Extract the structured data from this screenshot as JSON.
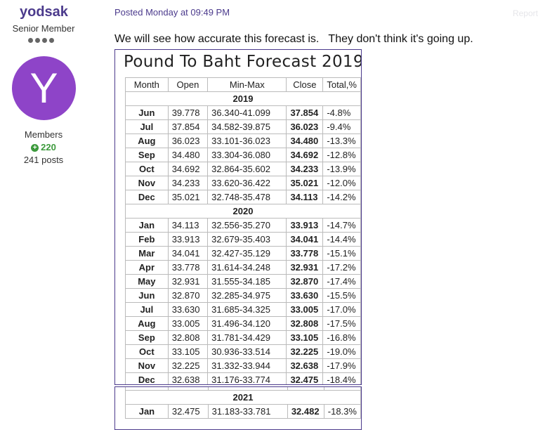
{
  "author": {
    "username": "yodsak",
    "rank": "Senior Member",
    "avatar_letter": "Y",
    "avatar_color": "#8e44c8",
    "group": "Members",
    "reputation": "220",
    "posts": "241 posts"
  },
  "post": {
    "posted": "Posted Monday at 09:49 PM",
    "report": "Report",
    "text": "We will see how accurate this forecast is.   They don't think it's going up."
  },
  "forecast": {
    "title": "Pound To Baht Forecast 2019,",
    "headers": [
      "Month",
      "Open",
      "Min-Max",
      "Close",
      "Total,%"
    ],
    "year2019": "2019",
    "rows2019": [
      [
        "Jun",
        "39.778",
        "36.340-41.099",
        "37.854",
        "-4.8%"
      ],
      [
        "Jul",
        "37.854",
        "34.582-39.875",
        "36.023",
        "-9.4%"
      ],
      [
        "Aug",
        "36.023",
        "33.101-36.023",
        "34.480",
        "-13.3%"
      ],
      [
        "Sep",
        "34.480",
        "33.304-36.080",
        "34.692",
        "-12.8%"
      ],
      [
        "Oct",
        "34.692",
        "32.864-35.602",
        "34.233",
        "-13.9%"
      ],
      [
        "Nov",
        "34.233",
        "33.620-36.422",
        "35.021",
        "-12.0%"
      ],
      [
        "Dec",
        "35.021",
        "32.748-35.478",
        "34.113",
        "-14.2%"
      ]
    ],
    "year2020": "2020",
    "rows2020": [
      [
        "Jan",
        "34.113",
        "32.556-35.270",
        "33.913",
        "-14.7%"
      ],
      [
        "Feb",
        "33.913",
        "32.679-35.403",
        "34.041",
        "-14.4%"
      ],
      [
        "Mar",
        "34.041",
        "32.427-35.129",
        "33.778",
        "-15.1%"
      ],
      [
        "Apr",
        "33.778",
        "31.614-34.248",
        "32.931",
        "-17.2%"
      ],
      [
        "May",
        "32.931",
        "31.555-34.185",
        "32.870",
        "-17.4%"
      ],
      [
        "Jun",
        "32.870",
        "32.285-34.975",
        "33.630",
        "-15.5%"
      ],
      [
        "Jul",
        "33.630",
        "31.685-34.325",
        "33.005",
        "-17.0%"
      ],
      [
        "Aug",
        "33.005",
        "31.496-34.120",
        "32.808",
        "-17.5%"
      ],
      [
        "Sep",
        "32.808",
        "31.781-34.429",
        "33.105",
        "-16.8%"
      ],
      [
        "Oct",
        "33.105",
        "30.936-33.514",
        "32.225",
        "-19.0%"
      ],
      [
        "Nov",
        "32.225",
        "31.332-33.944",
        "32.638",
        "-17.9%"
      ],
      [
        "Dec",
        "32.638",
        "31.176-33.774",
        "32.475",
        "-18.4%"
      ]
    ],
    "year2021": "2021",
    "rows2021": [
      [
        "Jan",
        "32.475",
        "31.183-33.781",
        "32.482",
        "-18.3%"
      ]
    ]
  }
}
